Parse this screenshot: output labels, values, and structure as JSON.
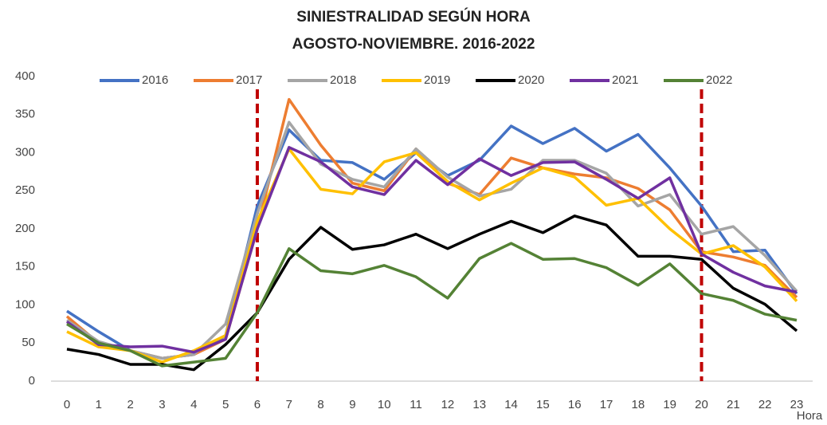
{
  "chart_data": {
    "type": "line",
    "title": "SINIESTRALIDAD SEGÚN HORA",
    "subtitle": "AGOSTO-NOVIEMBRE. 2016-2022",
    "x_label": "Hora",
    "categories": [
      "0",
      "1",
      "2",
      "3",
      "4",
      "5",
      "6",
      "7",
      "8",
      "9",
      "10",
      "11",
      "12",
      "13",
      "14",
      "15",
      "16",
      "17",
      "18",
      "19",
      "20",
      "21",
      "22",
      "23"
    ],
    "ylim": [
      0,
      400
    ],
    "yticks": [
      0,
      50,
      100,
      150,
      200,
      250,
      300,
      350,
      400
    ],
    "grid": false,
    "legend": "top",
    "reference_lines": {
      "color": "#c00000",
      "categories": [
        6,
        20
      ]
    },
    "series": [
      {
        "name": "2016",
        "color": "#4472c4",
        "values": [
          92,
          65,
          40,
          30,
          35,
          60,
          230,
          330,
          290,
          287,
          265,
          300,
          270,
          290,
          335,
          312,
          332,
          302,
          324,
          280,
          230,
          170,
          172,
          115
        ]
      },
      {
        "name": "2017",
        "color": "#ed7d31",
        "values": [
          85,
          50,
          40,
          30,
          35,
          55,
          200,
          370,
          310,
          260,
          250,
          305,
          260,
          245,
          293,
          280,
          272,
          267,
          253,
          225,
          170,
          163,
          152,
          110
        ]
      },
      {
        "name": "2018",
        "color": "#a5a5a5",
        "values": [
          80,
          52,
          40,
          30,
          35,
          75,
          220,
          340,
          285,
          265,
          255,
          305,
          268,
          243,
          252,
          290,
          290,
          273,
          230,
          245,
          193,
          203,
          165,
          118
        ]
      },
      {
        "name": "2019",
        "color": "#ffc000",
        "values": [
          65,
          45,
          40,
          25,
          40,
          60,
          210,
          305,
          252,
          246,
          288,
          300,
          262,
          238,
          260,
          280,
          268,
          231,
          240,
          200,
          167,
          178,
          150,
          105
        ]
      },
      {
        "name": "2020",
        "color": "#000000",
        "values": [
          42,
          35,
          22,
          22,
          15,
          48,
          90,
          160,
          202,
          173,
          179,
          193,
          174,
          193,
          210,
          195,
          217,
          205,
          164,
          164,
          160,
          122,
          101,
          66
        ]
      },
      {
        "name": "2021",
        "color": "#7030a0",
        "values": [
          78,
          48,
          45,
          46,
          38,
          55,
          200,
          307,
          288,
          255,
          245,
          290,
          258,
          292,
          270,
          287,
          288,
          265,
          240,
          267,
          167,
          143,
          125,
          117
        ]
      },
      {
        "name": "2022",
        "color": "#548235",
        "values": [
          75,
          50,
          40,
          20,
          25,
          30,
          90,
          174,
          145,
          141,
          152,
          137,
          109,
          161,
          181,
          160,
          161,
          149,
          126,
          154,
          115,
          106,
          88,
          80
        ]
      }
    ]
  }
}
